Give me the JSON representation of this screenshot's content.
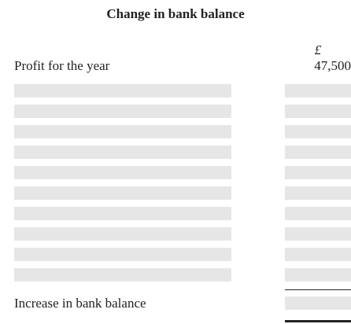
{
  "header": {
    "title": "Change in bank balance",
    "currency": "£"
  },
  "rows": [
    {
      "label": "Profit for the year",
      "value": "47,500"
    }
  ],
  "total": {
    "label": "Increase in bank balance"
  }
}
